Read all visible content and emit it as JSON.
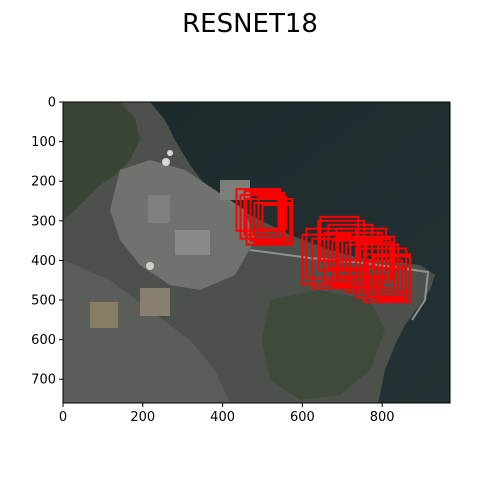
{
  "chart_data": {
    "type": "image",
    "title": "RESNET18",
    "xlabel": "",
    "ylabel": "",
    "xlim": [
      0,
      970
    ],
    "ylim": [
      760,
      0
    ],
    "x_ticks": [
      0,
      200,
      400,
      600,
      800
    ],
    "y_ticks": [
      0,
      100,
      200,
      300,
      400,
      500,
      600,
      700
    ],
    "grid": false,
    "box_color": "#ff0000",
    "boxes": [
      {
        "x0": 435,
        "y0": 220,
        "x1": 545,
        "y1": 325
      },
      {
        "x0": 445,
        "y0": 235,
        "x1": 550,
        "y1": 345
      },
      {
        "x0": 455,
        "y0": 225,
        "x1": 540,
        "y1": 335
      },
      {
        "x0": 460,
        "y0": 245,
        "x1": 575,
        "y1": 360
      },
      {
        "x0": 470,
        "y0": 230,
        "x1": 555,
        "y1": 350
      },
      {
        "x0": 480,
        "y0": 255,
        "x1": 570,
        "y1": 355
      },
      {
        "x0": 490,
        "y0": 240,
        "x1": 560,
        "y1": 320
      },
      {
        "x0": 500,
        "y0": 260,
        "x1": 575,
        "y1": 345
      },
      {
        "x0": 600,
        "y0": 335,
        "x1": 720,
        "y1": 460
      },
      {
        "x0": 610,
        "y0": 320,
        "x1": 735,
        "y1": 445
      },
      {
        "x0": 625,
        "y0": 345,
        "x1": 760,
        "y1": 470
      },
      {
        "x0": 640,
        "y0": 300,
        "x1": 755,
        "y1": 425
      },
      {
        "x0": 645,
        "y0": 290,
        "x1": 740,
        "y1": 400
      },
      {
        "x0": 655,
        "y0": 330,
        "x1": 790,
        "y1": 455
      },
      {
        "x0": 665,
        "y0": 310,
        "x1": 775,
        "y1": 420
      },
      {
        "x0": 675,
        "y0": 350,
        "x1": 800,
        "y1": 465
      },
      {
        "x0": 685,
        "y0": 320,
        "x1": 810,
        "y1": 440
      },
      {
        "x0": 690,
        "y0": 340,
        "x1": 830,
        "y1": 470
      },
      {
        "x0": 700,
        "y0": 330,
        "x1": 800,
        "y1": 420
      },
      {
        "x0": 710,
        "y0": 360,
        "x1": 840,
        "y1": 480
      },
      {
        "x0": 720,
        "y0": 345,
        "x1": 820,
        "y1": 455
      },
      {
        "x0": 735,
        "y0": 370,
        "x1": 860,
        "y1": 495
      },
      {
        "x0": 745,
        "y0": 355,
        "x1": 825,
        "y1": 445
      },
      {
        "x0": 755,
        "y0": 385,
        "x1": 870,
        "y1": 505
      },
      {
        "x0": 765,
        "y0": 400,
        "x1": 850,
        "y1": 490
      },
      {
        "x0": 780,
        "y0": 390,
        "x1": 870,
        "y1": 480
      },
      {
        "x0": 790,
        "y0": 420,
        "x1": 860,
        "y1": 500
      }
    ]
  }
}
